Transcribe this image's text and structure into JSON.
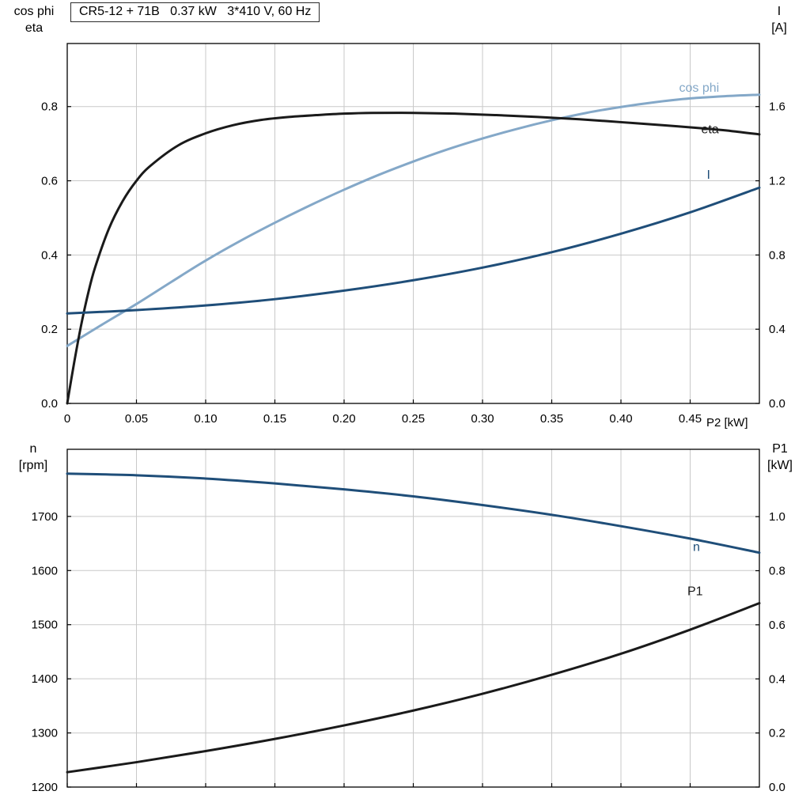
{
  "title_box": {
    "text": "CR5-12 + 71B   0.37 kW   3*410 V, 60 Hz"
  },
  "colors": {
    "curve_black": "#1a1a1a",
    "curve_dark_blue": "#1f4e79",
    "curve_light_blue": "#84a8c8",
    "grid": "#c9c9c9",
    "frame": "#000000",
    "text": "#000000"
  },
  "chart_data": [
    {
      "type": "line",
      "id": "motor-electrical-curves",
      "x_axis": {
        "label": "P2 [kW]",
        "min": 0,
        "max": 0.5,
        "ticks": [
          0,
          0.05,
          0.1,
          0.15,
          0.2,
          0.25,
          0.3,
          0.35,
          0.4,
          0.45
        ],
        "tick_labels": [
          "0",
          "0.05",
          "0.10",
          "0.15",
          "0.20",
          "0.25",
          "0.30",
          "0.35",
          "0.40",
          "0.45"
        ]
      },
      "y_left": {
        "title_lines": [
          "cos phi",
          "eta"
        ],
        "min": 0,
        "max": 0.97,
        "ticks": [
          0,
          0.2,
          0.4,
          0.6,
          0.8
        ],
        "tick_labels": [
          "0.0",
          "0.2",
          "0.4",
          "0.6",
          "0.8"
        ]
      },
      "y_right": {
        "title_lines": [
          "I",
          "[A]"
        ],
        "min": 0,
        "max": 1.94,
        "ticks": [
          0,
          0.4,
          0.8,
          1.2,
          1.6
        ],
        "tick_labels": [
          "0.0",
          "0.4",
          "0.8",
          "1.2",
          "1.6"
        ]
      },
      "series": [
        {
          "name": "cos phi",
          "color": "curve_light_blue",
          "axis": "left",
          "label_at": {
            "x": 0.442,
            "y": 0.84
          },
          "x": [
            0,
            0.025,
            0.05,
            0.075,
            0.1,
            0.125,
            0.15,
            0.175,
            0.2,
            0.225,
            0.25,
            0.275,
            0.3,
            0.325,
            0.35,
            0.375,
            0.4,
            0.425,
            0.45,
            0.475,
            0.5
          ],
          "y": [
            0.155,
            0.212,
            0.268,
            0.327,
            0.385,
            0.438,
            0.487,
            0.533,
            0.576,
            0.616,
            0.652,
            0.685,
            0.714,
            0.74,
            0.763,
            0.783,
            0.799,
            0.812,
            0.822,
            0.828,
            0.832
          ]
        },
        {
          "name": "eta",
          "color": "curve_black",
          "axis": "left",
          "label_at": {
            "x": 0.458,
            "y": 0.728
          },
          "x": [
            0,
            0.005,
            0.01,
            0.015,
            0.02,
            0.03,
            0.04,
            0.05,
            0.06,
            0.08,
            0.1,
            0.12,
            0.14,
            0.16,
            0.18,
            0.2,
            0.22,
            0.25,
            0.28,
            0.31,
            0.34,
            0.37,
            0.4,
            0.43,
            0.46,
            0.48,
            0.5
          ],
          "y": [
            0,
            0.11,
            0.21,
            0.295,
            0.365,
            0.47,
            0.545,
            0.6,
            0.64,
            0.695,
            0.728,
            0.75,
            0.764,
            0.772,
            0.777,
            0.781,
            0.783,
            0.783,
            0.781,
            0.777,
            0.772,
            0.766,
            0.758,
            0.75,
            0.741,
            0.734,
            0.725
          ]
        },
        {
          "name": "I",
          "color": "curve_dark_blue",
          "axis": "right",
          "label_at": {
            "x": 0.462,
            "y": 1.21
          },
          "x": [
            0,
            0.05,
            0.1,
            0.15,
            0.2,
            0.25,
            0.3,
            0.35,
            0.4,
            0.45,
            0.5
          ],
          "y": [
            0.485,
            0.503,
            0.528,
            0.562,
            0.608,
            0.664,
            0.732,
            0.815,
            0.915,
            1.03,
            1.163
          ]
        }
      ]
    },
    {
      "type": "line",
      "id": "motor-speed-power-curves",
      "x_axis": {
        "label": "",
        "min": 0,
        "max": 0.5,
        "ticks": [
          0,
          0.05,
          0.1,
          0.15,
          0.2,
          0.25,
          0.3,
          0.35,
          0.4,
          0.45
        ],
        "tick_labels": []
      },
      "y_left": {
        "title_lines": [
          "n",
          "[rpm]"
        ],
        "min": 1200,
        "max": 1824,
        "ticks": [
          1200,
          1300,
          1400,
          1500,
          1600,
          1700
        ],
        "tick_labels": [
          "1200",
          "1300",
          "1400",
          "1500",
          "1600",
          "1700"
        ]
      },
      "y_right": {
        "title_lines": [
          "P1",
          "[kW]"
        ],
        "min": 0,
        "max": 1.249,
        "ticks": [
          0,
          0.2,
          0.4,
          0.6,
          0.8,
          1.0
        ],
        "tick_labels": [
          "0.0",
          "0.2",
          "0.4",
          "0.6",
          "0.8",
          "1.0"
        ]
      },
      "series": [
        {
          "name": "n",
          "color": "curve_dark_blue",
          "axis": "left",
          "label_at": {
            "x": 0.452,
            "y": 1636
          },
          "x": [
            0,
            0.05,
            0.1,
            0.15,
            0.2,
            0.25,
            0.3,
            0.35,
            0.4,
            0.45,
            0.5
          ],
          "y": [
            1779,
            1776,
            1770,
            1761,
            1750,
            1737,
            1721,
            1703,
            1682,
            1659,
            1633
          ]
        },
        {
          "name": "P1",
          "color": "curve_black",
          "axis": "right",
          "label_at": {
            "x": 0.448,
            "y": 0.71
          },
          "x": [
            0,
            0.05,
            0.1,
            0.15,
            0.2,
            0.25,
            0.3,
            0.35,
            0.4,
            0.45,
            0.5
          ],
          "y": [
            0.055,
            0.092,
            0.133,
            0.178,
            0.228,
            0.283,
            0.345,
            0.415,
            0.493,
            0.582,
            0.68
          ]
        }
      ]
    }
  ]
}
